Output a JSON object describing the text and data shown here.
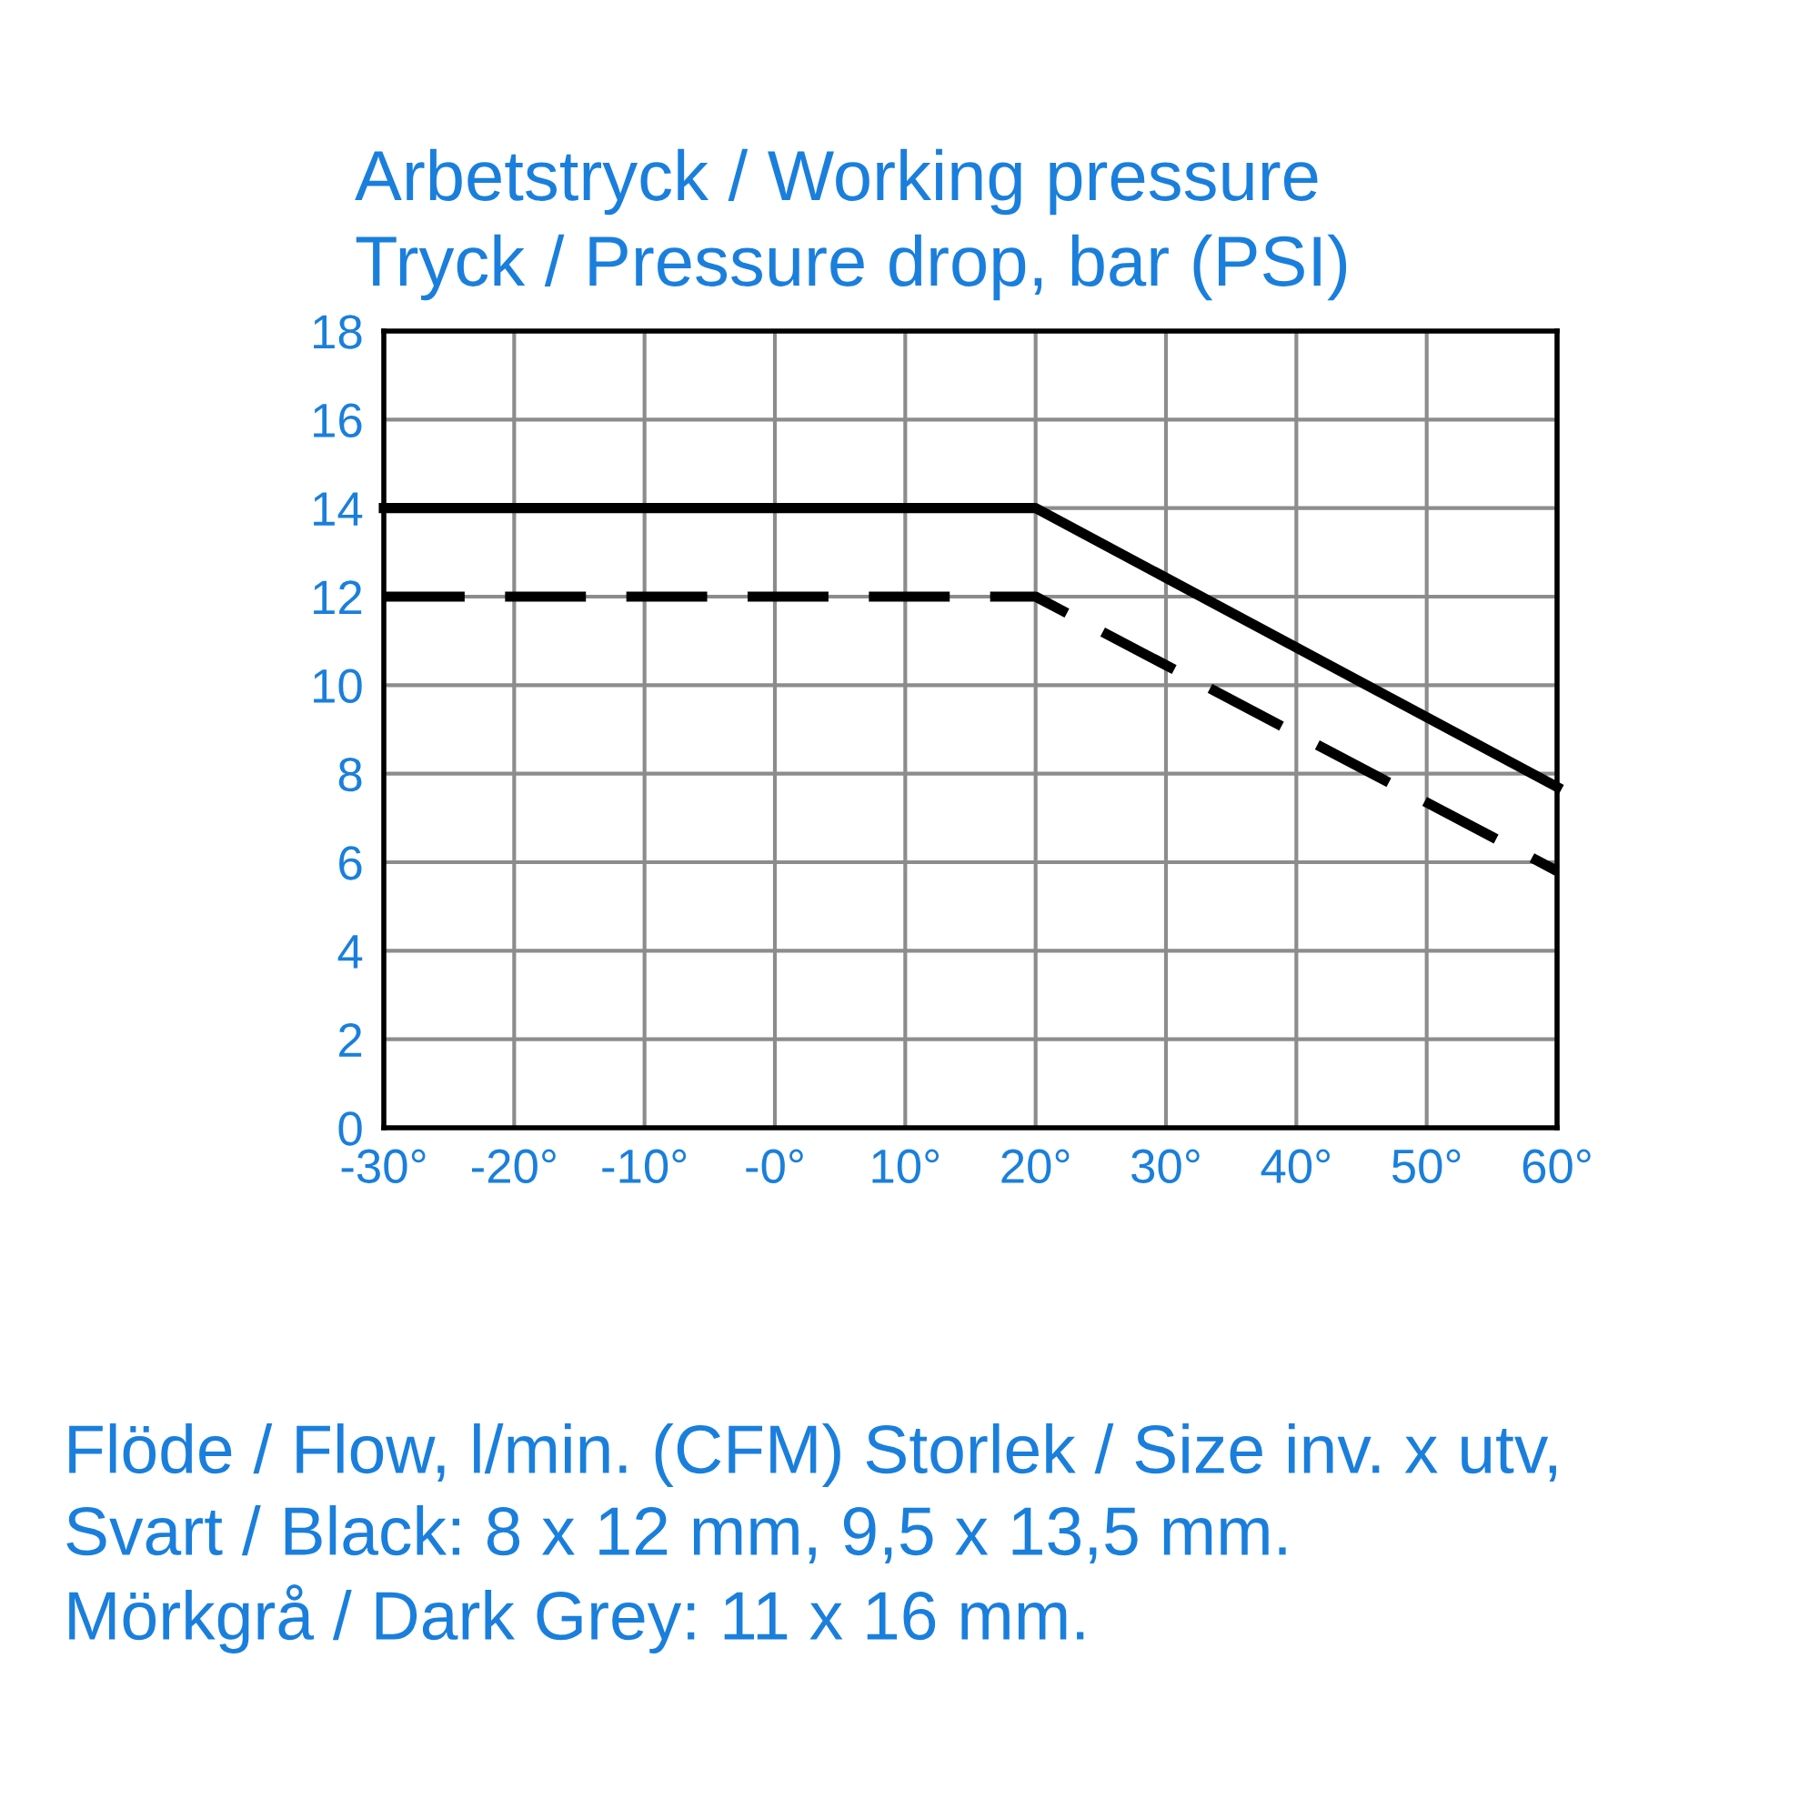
{
  "chart_data": {
    "type": "line",
    "title": "Arbetstryck / Working pressure",
    "subtitle": "Tryck / Pressure drop, bar (PSI)",
    "x": [
      -30,
      20,
      60
    ],
    "series": [
      {
        "color": "#000000",
        "line_style": "solid",
        "values": [
          14,
          14,
          7.7
        ]
      },
      {
        "color": "#000000",
        "line_style": "dashed",
        "values": [
          12,
          12,
          5.8
        ]
      }
    ],
    "xlim": [
      -30,
      60
    ],
    "xticks": [
      {
        "value": -30,
        "label": "-30°"
      },
      {
        "value": -20,
        "label": "-20°"
      },
      {
        "value": -10,
        "label": "-10°"
      },
      {
        "value": 0,
        "label": "-0°"
      },
      {
        "value": 10,
        "label": "10°"
      },
      {
        "value": 20,
        "label": "20°"
      },
      {
        "value": 30,
        "label": "30°"
      },
      {
        "value": 40,
        "label": "40°"
      },
      {
        "value": 50,
        "label": "50°"
      },
      {
        "value": 60,
        "label": "60°"
      }
    ],
    "ylim": [
      0,
      18
    ],
    "yticks": [
      0,
      2,
      4,
      6,
      8,
      10,
      12,
      14,
      16,
      18
    ],
    "grid": true,
    "marker": "none",
    "annotations": [
      "Flöde / Flow, l/min. (CFM) Storlek / Size inv. x utv,",
      "Svart / Black: 8 x 12 mm, 9,5 x 13,5 mm.",
      "Mörkgrå / Dark Grey: 11 x 16 mm."
    ]
  }
}
